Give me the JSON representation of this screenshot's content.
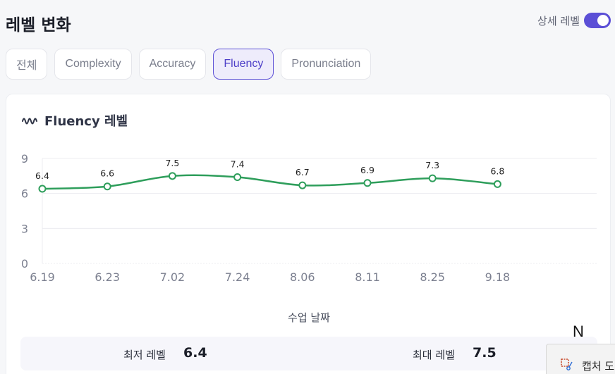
{
  "header": {
    "title": "레벨 변화",
    "detail_label": "상세 레벨",
    "detail_on": true
  },
  "tabs": [
    {
      "label": "전체",
      "active": false
    },
    {
      "label": "Complexity",
      "active": false
    },
    {
      "label": "Accuracy",
      "active": false
    },
    {
      "label": "Fluency",
      "active": true
    },
    {
      "label": "Pronunciation",
      "active": false
    }
  ],
  "card": {
    "title": "Fluency 레벨",
    "icon": "wave-icon"
  },
  "chart_data": {
    "type": "line",
    "title": "Fluency 레벨",
    "xlabel": "수업 날짜",
    "ylabel": "",
    "categories": [
      "6.19",
      "6.23",
      "7.02",
      "7.24",
      "8.06",
      "8.11",
      "8.25",
      "9.18"
    ],
    "values": [
      6.4,
      6.6,
      7.5,
      7.4,
      6.7,
      6.9,
      7.3,
      6.8
    ],
    "data_labels": [
      "6.4",
      "6.6",
      "7.5",
      "7.4",
      "6.7",
      "6.9",
      "7.3",
      "6.8"
    ],
    "yticks": [
      "0",
      "3",
      "6",
      "9"
    ],
    "ylim": [
      0,
      9
    ],
    "grid": true,
    "color": "#2e9e5b"
  },
  "summary": {
    "min_label": "최저 레벨",
    "min_value": "6.4",
    "max_label": "최대 레벨",
    "max_value": "7.5"
  },
  "overlay": {
    "letter": "N",
    "capture_text": "캡처 도"
  }
}
